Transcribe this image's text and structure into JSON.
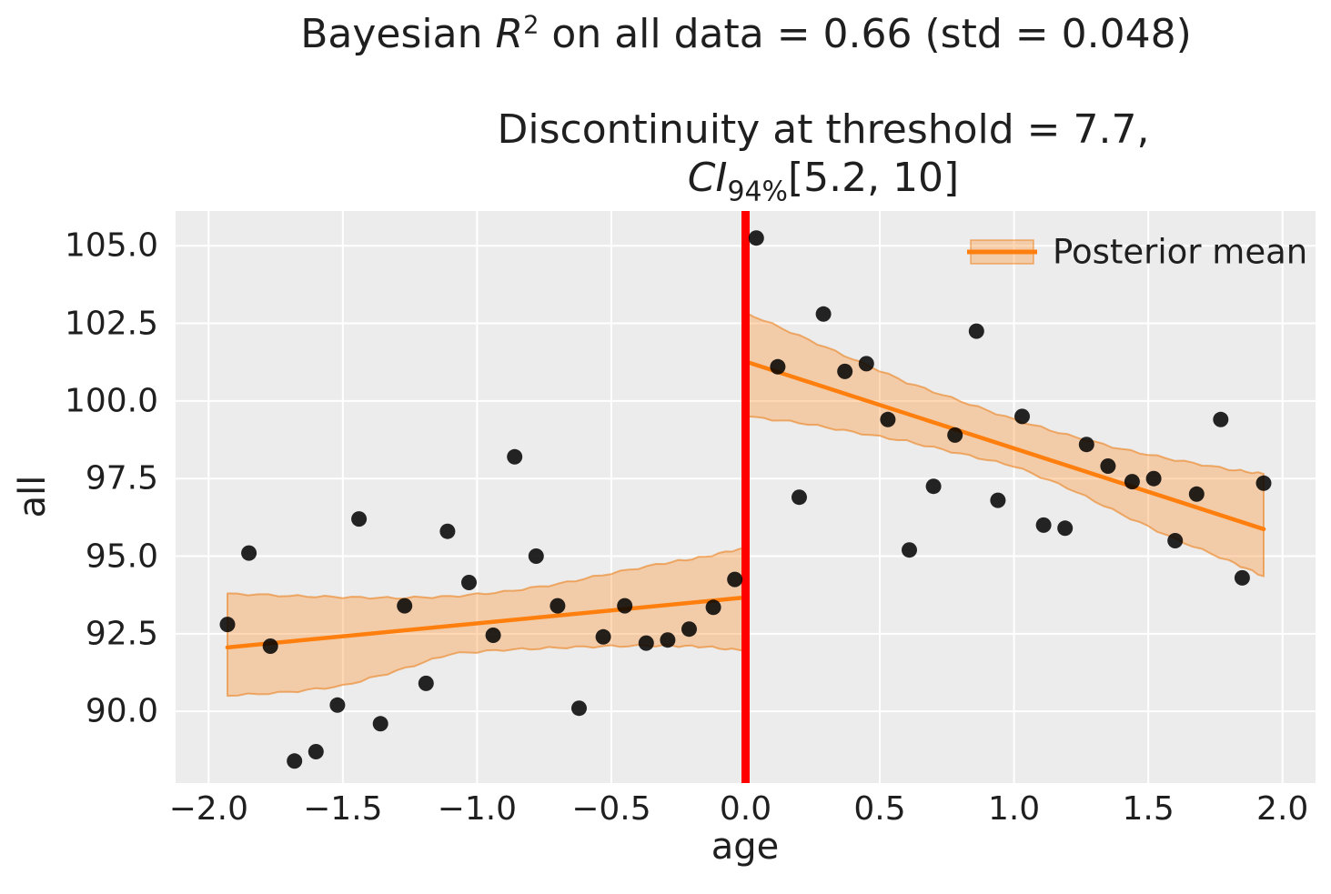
{
  "title": {
    "prefix": "Bayesian ",
    "r_symbol": "R",
    "r_exponent": "2",
    "suffix": " on all data = 0.66 (std = 0.048)"
  },
  "subtitle": {
    "line1": "Discontinuity at threshold = 7.7,",
    "ci_symbol": "CI",
    "ci_sub": "94%",
    "ci_interval": "[5.2, 10]"
  },
  "legend": {
    "label": "Posterior mean"
  },
  "chart_data": {
    "type": "scatter",
    "title": "Bayesian R^2 on all data = 0.66 (std = 0.048)",
    "subtitle": "Discontinuity at threshold = 7.7, CI_94% [5.2, 10]",
    "xlabel": "age",
    "ylabel": "all",
    "xlim": [
      -2.123,
      2.123
    ],
    "ylim": [
      87.69,
      106.12
    ],
    "grid": true,
    "legend_position": "upper right",
    "xticks": [
      -2.0,
      -1.5,
      -1.0,
      -0.5,
      0.0,
      0.5,
      1.0,
      1.5,
      2.0
    ],
    "xtick_labels": [
      "−2.0",
      "−1.5",
      "−1.0",
      "−0.5",
      "0.0",
      "0.5",
      "1.0",
      "1.5",
      "2.0"
    ],
    "yticks": [
      105.0,
      102.5,
      100.0,
      97.5,
      95.0,
      92.5,
      90.0
    ],
    "ytick_labels": [
      "105.0",
      "102.5",
      "100.0",
      "97.5",
      "95.0",
      "92.5",
      "90.0"
    ],
    "threshold_x": 0.0,
    "points": [
      [
        -1.93,
        92.8
      ],
      [
        -1.85,
        95.1
      ],
      [
        -1.77,
        92.1
      ],
      [
        -1.68,
        88.4
      ],
      [
        -1.6,
        88.7
      ],
      [
        -1.52,
        90.2
      ],
      [
        -1.44,
        96.2
      ],
      [
        -1.36,
        89.6
      ],
      [
        -1.27,
        93.4
      ],
      [
        -1.19,
        90.9
      ],
      [
        -1.11,
        95.8
      ],
      [
        -1.03,
        94.15
      ],
      [
        -0.94,
        92.45
      ],
      [
        -0.86,
        98.2
      ],
      [
        -0.78,
        95.0
      ],
      [
        -0.7,
        93.4
      ],
      [
        -0.62,
        90.1
      ],
      [
        -0.53,
        92.4
      ],
      [
        -0.45,
        93.4
      ],
      [
        -0.37,
        92.2
      ],
      [
        -0.29,
        92.3
      ],
      [
        -0.21,
        92.65
      ],
      [
        -0.12,
        93.35
      ],
      [
        -0.04,
        94.25
      ],
      [
        0.04,
        105.25
      ],
      [
        0.12,
        101.1
      ],
      [
        0.2,
        96.9
      ],
      [
        0.29,
        102.8
      ],
      [
        0.37,
        100.95
      ],
      [
        0.45,
        101.2
      ],
      [
        0.53,
        99.4
      ],
      [
        0.61,
        95.2
      ],
      [
        0.7,
        97.25
      ],
      [
        0.78,
        98.9
      ],
      [
        0.86,
        102.25
      ],
      [
        0.94,
        96.8
      ],
      [
        1.03,
        99.5
      ],
      [
        1.11,
        96.0
      ],
      [
        1.19,
        95.9
      ],
      [
        1.27,
        98.6
      ],
      [
        1.35,
        97.9
      ],
      [
        1.44,
        97.4
      ],
      [
        1.52,
        97.5
      ],
      [
        1.6,
        95.5
      ],
      [
        1.68,
        97.0
      ],
      [
        1.77,
        99.4
      ],
      [
        1.85,
        94.3
      ],
      [
        1.93,
        97.35
      ]
    ],
    "posterior_mean": {
      "left": {
        "x": [
          -1.93,
          0.0
        ],
        "y": [
          92.06,
          93.67
        ]
      },
      "right": {
        "x": [
          0.0,
          1.93
        ],
        "y": [
          101.27,
          95.87
        ]
      }
    },
    "credible_band": {
      "left": {
        "x": [
          -1.93,
          -1.7,
          -1.5,
          -1.3,
          -1.1,
          -0.9,
          -0.7,
          -0.5,
          -0.3,
          -0.15,
          0.0
        ],
        "top": [
          93.8,
          93.72,
          93.68,
          93.65,
          93.7,
          93.85,
          94.1,
          94.45,
          94.78,
          94.98,
          95.28
        ],
        "bottom": [
          90.5,
          90.62,
          90.82,
          91.3,
          91.85,
          91.98,
          92.05,
          92.1,
          92.12,
          92.08,
          91.95
        ]
      },
      "right": {
        "x": [
          0.0,
          0.2,
          0.4,
          0.6,
          0.8,
          1.0,
          1.2,
          1.4,
          1.6,
          1.8,
          1.93
        ],
        "top": [
          102.85,
          102.1,
          101.35,
          100.6,
          100.0,
          99.4,
          98.9,
          98.45,
          98.1,
          97.8,
          97.65
        ],
        "bottom": [
          99.5,
          99.3,
          99.0,
          98.7,
          98.3,
          97.9,
          97.2,
          96.35,
          95.55,
          94.85,
          94.35
        ]
      }
    },
    "colors": {
      "plot_background": "#ececec",
      "grid": "#ffffff",
      "scatter": "#000000",
      "posterior_line": "#ff7f0e",
      "band_fill": "rgba(255,127,14,0.30)",
      "band_edge": "rgba(235,122,15,0.55)",
      "threshold_line": "#ff0000",
      "text": "#1f1f1f"
    }
  }
}
